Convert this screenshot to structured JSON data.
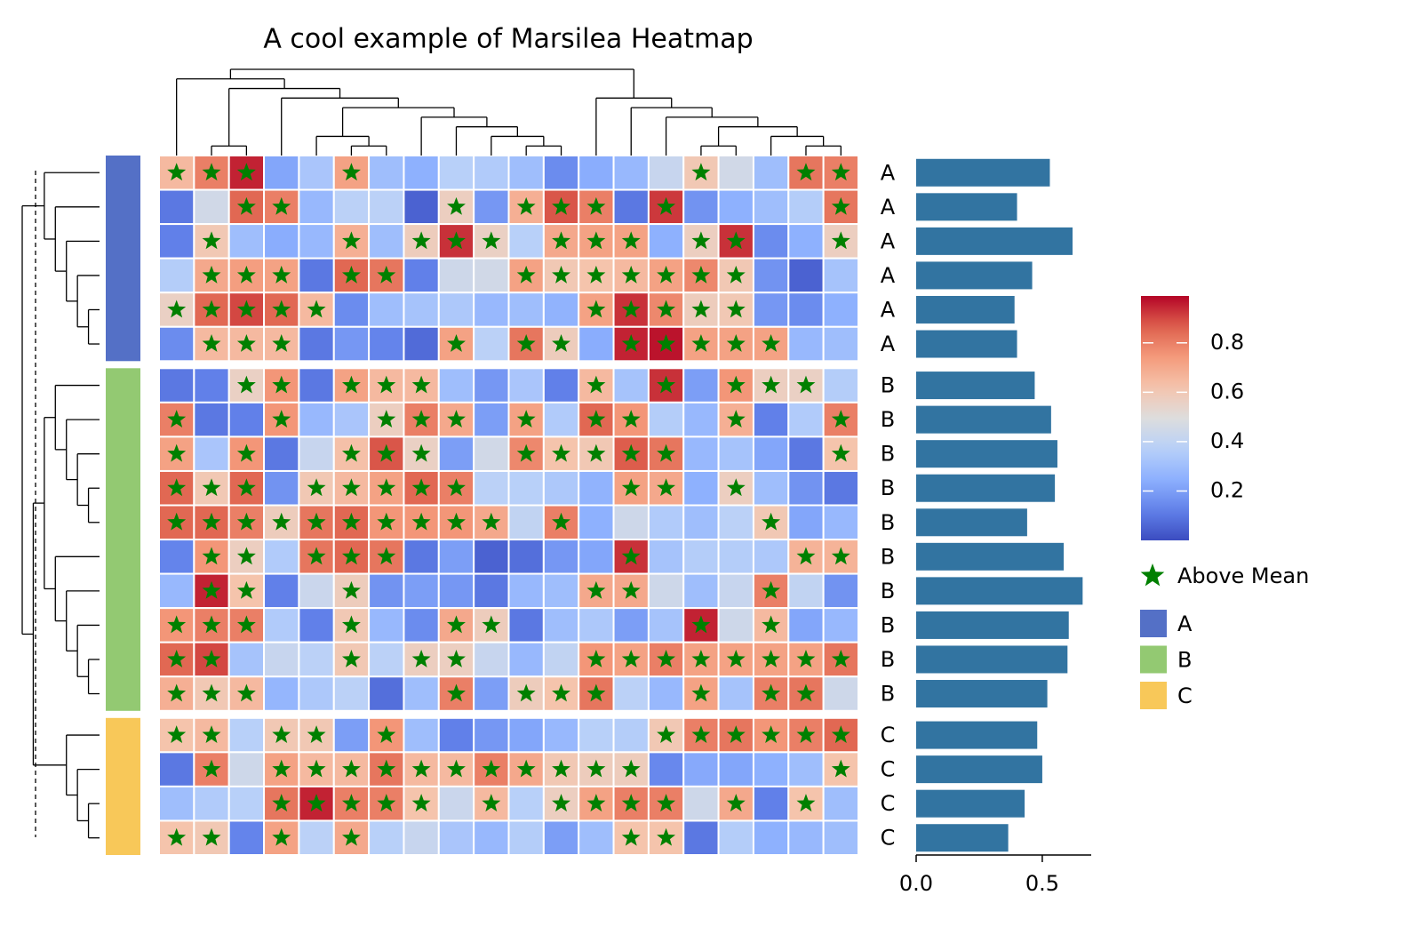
{
  "chart_data": {
    "type": "heatmap",
    "title": "A cool example of Marsilea Heatmap",
    "row_labels": [
      "A",
      "A",
      "A",
      "A",
      "A",
      "A",
      "B",
      "B",
      "B",
      "B",
      "B",
      "B",
      "B",
      "B",
      "B",
      "B",
      "C",
      "C",
      "C",
      "C"
    ],
    "values": [
      [
        0.65,
        0.8,
        0.95,
        0.22,
        0.33,
        0.72,
        0.3,
        0.25,
        0.37,
        0.35,
        0.3,
        0.15,
        0.24,
        0.28,
        0.42,
        0.6,
        0.45,
        0.3,
        0.82,
        0.8
      ],
      [
        0.1,
        0.45,
        0.85,
        0.8,
        0.28,
        0.38,
        0.38,
        0.05,
        0.57,
        0.18,
        0.68,
        0.88,
        0.8,
        0.1,
        0.92,
        0.17,
        0.25,
        0.3,
        0.36,
        0.82
      ],
      [
        0.12,
        0.6,
        0.3,
        0.24,
        0.28,
        0.68,
        0.3,
        0.58,
        0.93,
        0.56,
        0.37,
        0.7,
        0.72,
        0.72,
        0.25,
        0.57,
        0.93,
        0.15,
        0.25,
        0.57
      ],
      [
        0.36,
        0.7,
        0.73,
        0.72,
        0.1,
        0.85,
        0.82,
        0.12,
        0.44,
        0.45,
        0.72,
        0.6,
        0.62,
        0.65,
        0.72,
        0.78,
        0.6,
        0.17,
        0.05,
        0.32
      ],
      [
        0.56,
        0.85,
        0.9,
        0.85,
        0.65,
        0.15,
        0.3,
        0.32,
        0.34,
        0.28,
        0.3,
        0.26,
        0.72,
        0.93,
        0.78,
        0.58,
        0.6,
        0.18,
        0.15,
        0.25
      ],
      [
        0.15,
        0.65,
        0.65,
        0.65,
        0.1,
        0.18,
        0.13,
        0.07,
        0.72,
        0.38,
        0.82,
        0.58,
        0.24,
        0.95,
        0.97,
        0.72,
        0.72,
        0.72,
        0.28,
        0.3
      ],
      [
        0.1,
        0.12,
        0.56,
        0.75,
        0.1,
        0.72,
        0.65,
        0.65,
        0.3,
        0.18,
        0.33,
        0.12,
        0.65,
        0.32,
        0.93,
        0.2,
        0.75,
        0.57,
        0.56,
        0.36
      ],
      [
        0.8,
        0.1,
        0.12,
        0.75,
        0.28,
        0.33,
        0.57,
        0.8,
        0.7,
        0.2,
        0.72,
        0.35,
        0.85,
        0.75,
        0.36,
        0.28,
        0.68,
        0.12,
        0.35,
        0.8
      ],
      [
        0.72,
        0.33,
        0.75,
        0.1,
        0.42,
        0.63,
        0.88,
        0.56,
        0.2,
        0.45,
        0.78,
        0.62,
        0.6,
        0.87,
        0.82,
        0.28,
        0.32,
        0.22,
        0.1,
        0.62
      ],
      [
        0.85,
        0.6,
        0.85,
        0.17,
        0.6,
        0.65,
        0.72,
        0.85,
        0.8,
        0.38,
        0.37,
        0.34,
        0.26,
        0.72,
        0.7,
        0.25,
        0.57,
        0.3,
        0.17,
        0.1
      ],
      [
        0.85,
        0.85,
        0.8,
        0.58,
        0.82,
        0.85,
        0.75,
        0.75,
        0.75,
        0.7,
        0.4,
        0.8,
        0.25,
        0.44,
        0.35,
        0.3,
        0.38,
        0.6,
        0.22,
        0.28
      ],
      [
        0.13,
        0.75,
        0.57,
        0.35,
        0.82,
        0.85,
        0.82,
        0.1,
        0.2,
        0.05,
        0.08,
        0.18,
        0.22,
        0.93,
        0.32,
        0.36,
        0.36,
        0.34,
        0.67,
        0.67
      ],
      [
        0.28,
        0.95,
        0.62,
        0.12,
        0.43,
        0.58,
        0.17,
        0.2,
        0.18,
        0.1,
        0.28,
        0.3,
        0.7,
        0.7,
        0.44,
        0.3,
        0.42,
        0.8,
        0.4,
        0.17
      ],
      [
        0.75,
        0.8,
        0.8,
        0.35,
        0.12,
        0.6,
        0.28,
        0.15,
        0.7,
        0.58,
        0.1,
        0.3,
        0.34,
        0.2,
        0.32,
        0.95,
        0.44,
        0.65,
        0.22,
        0.28
      ],
      [
        0.85,
        0.9,
        0.32,
        0.42,
        0.38,
        0.6,
        0.38,
        0.57,
        0.57,
        0.42,
        0.28,
        0.4,
        0.75,
        0.72,
        0.8,
        0.72,
        0.72,
        0.72,
        0.72,
        0.82
      ],
      [
        0.68,
        0.6,
        0.65,
        0.27,
        0.34,
        0.38,
        0.08,
        0.3,
        0.8,
        0.2,
        0.58,
        0.62,
        0.82,
        0.38,
        0.28,
        0.72,
        0.32,
        0.8,
        0.82,
        0.44
      ],
      [
        0.62,
        0.65,
        0.37,
        0.6,
        0.6,
        0.2,
        0.75,
        0.3,
        0.12,
        0.18,
        0.22,
        0.28,
        0.37,
        0.36,
        0.6,
        0.8,
        0.82,
        0.75,
        0.8,
        0.85
      ],
      [
        0.1,
        0.8,
        0.44,
        0.72,
        0.65,
        0.65,
        0.82,
        0.65,
        0.65,
        0.8,
        0.7,
        0.6,
        0.58,
        0.58,
        0.14,
        0.23,
        0.22,
        0.25,
        0.3,
        0.62
      ],
      [
        0.3,
        0.35,
        0.37,
        0.82,
        0.95,
        0.8,
        0.8,
        0.62,
        0.43,
        0.65,
        0.37,
        0.57,
        0.72,
        0.8,
        0.8,
        0.44,
        0.7,
        0.12,
        0.62,
        0.3
      ],
      [
        0.62,
        0.6,
        0.13,
        0.72,
        0.38,
        0.7,
        0.37,
        0.42,
        0.33,
        0.28,
        0.36,
        0.2,
        0.3,
        0.62,
        0.62,
        0.1,
        0.36,
        0.25,
        0.28,
        0.3
      ]
    ],
    "clim": [
      0,
      0.99
    ],
    "cticks": [
      0.2,
      0.4,
      0.6,
      0.8
    ],
    "star_legend": "Above Mean",
    "star_color": "#008000",
    "groups": [
      {
        "name": "A",
        "color": "#5470c6"
      },
      {
        "name": "B",
        "color": "#93c972"
      },
      {
        "name": "C",
        "color": "#f8c859"
      }
    ],
    "bar_chart": {
      "type": "bar",
      "values": [
        0.53,
        0.4,
        0.62,
        0.46,
        0.39,
        0.4,
        0.47,
        0.535,
        0.56,
        0.55,
        0.44,
        0.585,
        0.66,
        0.605,
        0.6,
        0.52,
        0.48,
        0.5,
        0.43,
        0.365
      ],
      "color": "#3274a1",
      "xlim": [
        0,
        0.694
      ],
      "xticks": [
        {
          "value": 0,
          "label": "0.0"
        },
        {
          "value": 0.5,
          "label": "0.5"
        }
      ]
    }
  }
}
